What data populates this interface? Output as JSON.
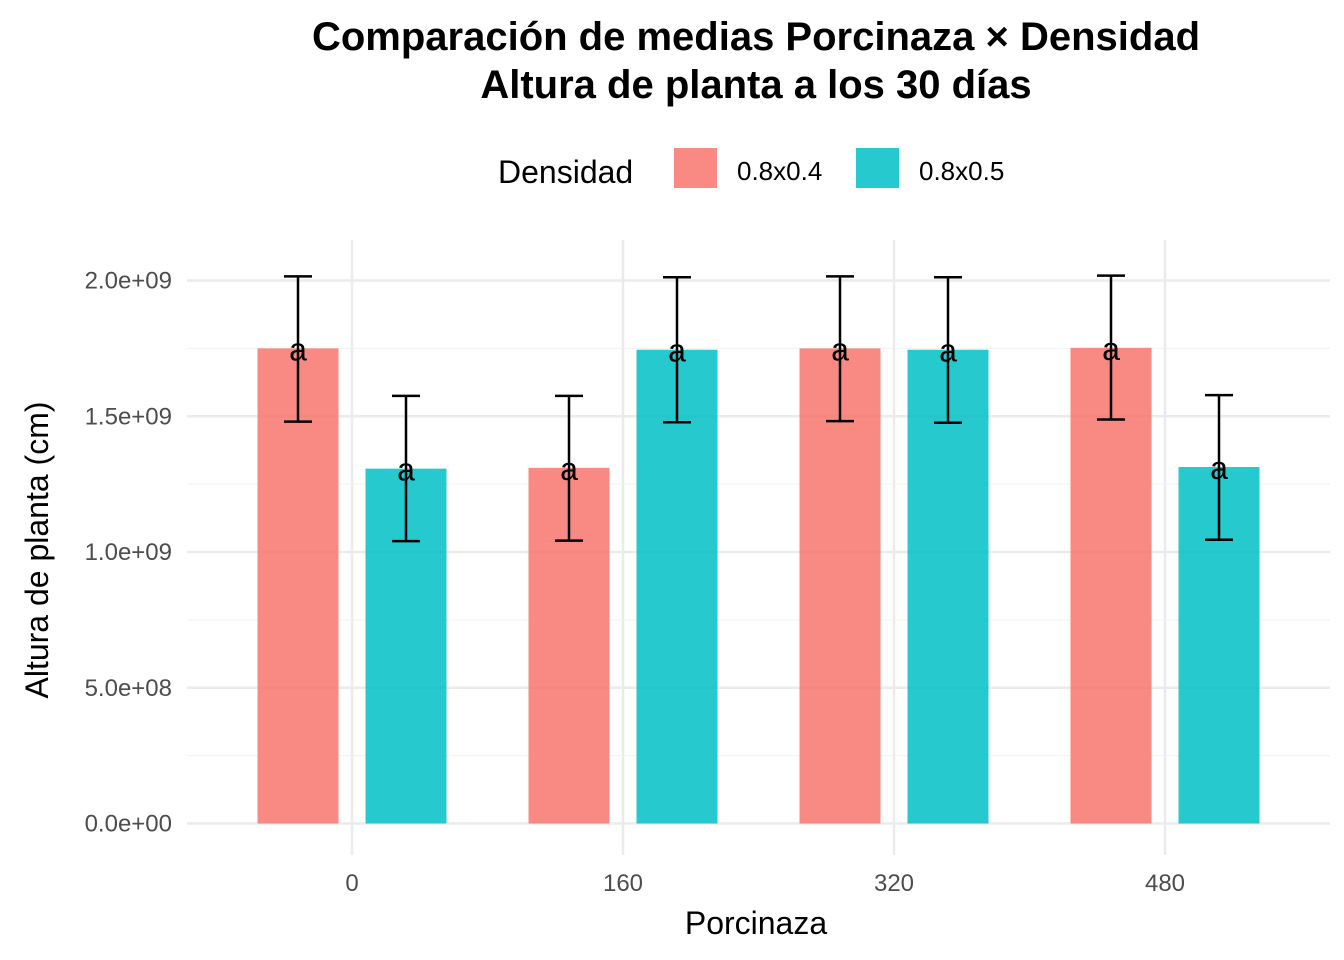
{
  "chart_data": {
    "type": "bar",
    "title": "Comparación de medias Porcinaza × Densidad",
    "subtitle": "Altura de planta a los 30 días",
    "xlabel": "Porcinaza",
    "ylabel": "Altura de planta (cm)",
    "categories": [
      "0",
      "160",
      "320",
      "480"
    ],
    "ylim": [
      -150000000,
      2200000000
    ],
    "y_ticks": [
      0,
      500000000,
      1000000000,
      1500000000,
      2000000000
    ],
    "y_tick_labels": [
      "0.0e+00",
      "5.0e+08",
      "1.0e+09",
      "1.5e+09",
      "2.0e+09"
    ],
    "legend": {
      "title": "Densidad",
      "position": "top"
    },
    "grid": true,
    "series": [
      {
        "name": "0.8x0.4",
        "color": "#F8766D",
        "values": [
          1750000000,
          1310000000,
          1750000000,
          1752000000
        ],
        "error_low": [
          1480000000,
          1042000000,
          1482000000,
          1488000000
        ],
        "error_high": [
          2015000000,
          1575000000,
          2015000000,
          2018000000
        ],
        "labels": [
          "a",
          "a",
          "a",
          "a"
        ]
      },
      {
        "name": "0.8x0.5",
        "color": "#00BFC4",
        "values": [
          1307000000,
          1745000000,
          1745000000,
          1313000000
        ],
        "error_low": [
          1040000000,
          1478000000,
          1476000000,
          1045000000
        ],
        "error_high": [
          1575000000,
          2012000000,
          2012000000,
          1578000000
        ],
        "labels": [
          "a",
          "a",
          "a",
          "a"
        ]
      }
    ]
  }
}
